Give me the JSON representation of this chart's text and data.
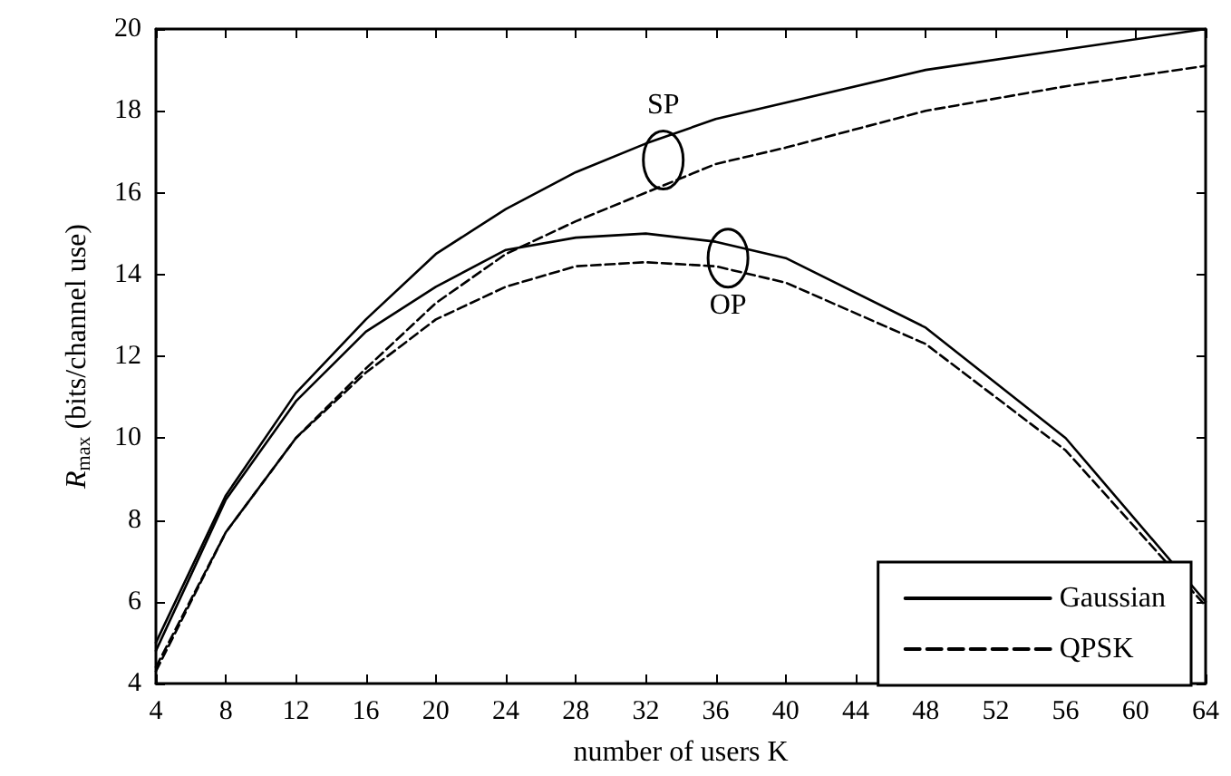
{
  "chart_data": {
    "type": "line",
    "xlabel": "number of users K",
    "ylabel": "R$_{max}$ (bits/channel use)",
    "x": [
      4,
      8,
      12,
      16,
      20,
      24,
      28,
      32,
      36,
      40,
      48,
      56,
      64
    ],
    "series": [
      {
        "name": "Gaussian",
        "color": "#000000",
        "line_style": "solid",
        "values": [
          5.0,
          8.6,
          11.1,
          12.9,
          14.5,
          15.6,
          16.5,
          17.2,
          17.8,
          18.2,
          19.0,
          19.5,
          20.0
        ]
      },
      {
        "name": "QPSK",
        "color": "#000000",
        "line_style": "dashed",
        "values": [
          4.4,
          7.7,
          10.0,
          11.7,
          13.3,
          14.5,
          15.3,
          16.0,
          16.7,
          17.1,
          18.0,
          18.6,
          19.1
        ]
      },
      {
        "color": "#000000",
        "line_style": "solid",
        "values": [
          4.8,
          8.5,
          10.9,
          12.6,
          13.7,
          14.6,
          14.9,
          15.0,
          14.8,
          14.4,
          12.7,
          10.0,
          6.0
        ]
      },
      {
        "color": "#000000",
        "line_style": "dashed",
        "values": [
          4.3,
          7.7,
          10.0,
          11.6,
          12.9,
          13.7,
          14.2,
          14.3,
          14.2,
          13.8,
          12.3,
          9.7,
          5.9
        ]
      }
    ],
    "annotations": [
      {
        "text": "SP",
        "x": 33,
        "y": 16.8
      },
      {
        "text": "OP",
        "x": 36.7,
        "y": 14.4
      }
    ],
    "xlim": [
      4,
      64
    ],
    "xticks": [
      4,
      8,
      12,
      16,
      20,
      24,
      28,
      32,
      36,
      40,
      44,
      48,
      52,
      56,
      60,
      64
    ],
    "ylim": [
      4,
      20
    ],
    "yticks": [
      4,
      6,
      8,
      10,
      12,
      14,
      16,
      18,
      20
    ],
    "grid": false,
    "legend": "bottom right",
    "marker": "none"
  }
}
